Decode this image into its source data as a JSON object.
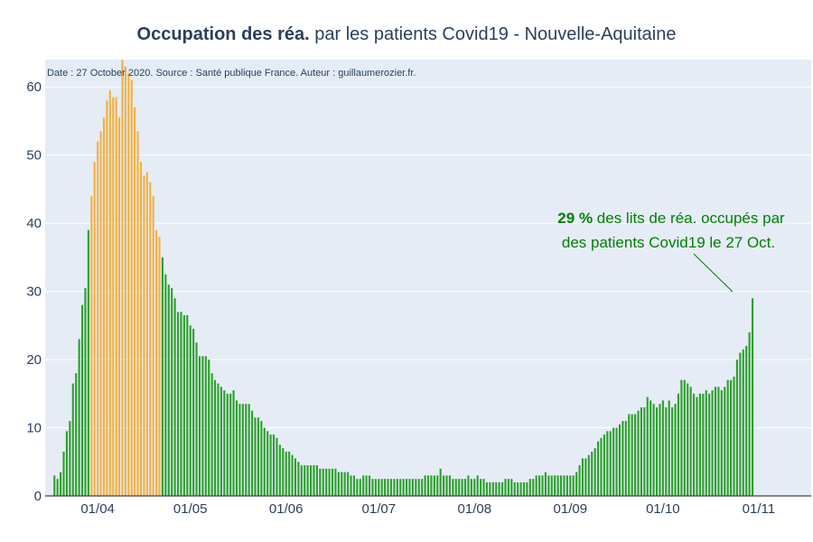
{
  "title": {
    "bold": "Occupation des réa.",
    "rest": " par les patients Covid19 - Nouvelle-Aquitaine"
  },
  "note": "Date : 27 October 2020. Source : Santé publique France. Auteur : guillaumerozier.fr.",
  "annotation": {
    "value": "29",
    "value_suffix": "  %",
    "line1_rest": " des lits de réa. occupés par",
    "line2": "des patients Covid19 le 27 Oct."
  },
  "colors": {
    "plot_bg": "#e5ecf6",
    "grid": "#ffffff",
    "bar_green": "#2ca02c",
    "bar_orange": "#f5b041",
    "annotation": "#008000",
    "text": "#2a3f5f"
  },
  "chart_data": {
    "type": "bar",
    "x_start": "2020-03-18",
    "x_end": "2020-10-27",
    "xlim": [
      "2020-03-15",
      "2020-11-18"
    ],
    "ylim": [
      0,
      64
    ],
    "y_ticks": [
      0,
      10,
      20,
      30,
      40,
      50,
      60
    ],
    "x_ticks": [
      {
        "date": "2020-04-01",
        "label": "01/04"
      },
      {
        "date": "2020-05-01",
        "label": "01/05"
      },
      {
        "date": "2020-06-01",
        "label": "01/06"
      },
      {
        "date": "2020-07-01",
        "label": "01/07"
      },
      {
        "date": "2020-08-01",
        "label": "01/08"
      },
      {
        "date": "2020-09-01",
        "label": "01/09"
      },
      {
        "date": "2020-10-01",
        "label": "01/10"
      },
      {
        "date": "2020-11-01",
        "label": "01/11"
      }
    ],
    "highlight_range": [
      "2020-03-30",
      "2020-04-21"
    ],
    "grid": true,
    "values": [
      3,
      2.5,
      3.5,
      6.5,
      9.5,
      11,
      16.5,
      18,
      23,
      28,
      30.5,
      39,
      44,
      49,
      52,
      53.5,
      55.5,
      58,
      59.5,
      58.5,
      58.5,
      55.5,
      65,
      63,
      62,
      61,
      57,
      53.5,
      49,
      47,
      47.5,
      46,
      44,
      39,
      38,
      35,
      32.5,
      31,
      30.5,
      29,
      27,
      27,
      26.5,
      26.5,
      25,
      24.5,
      22.5,
      20.5,
      20.5,
      20.5,
      20,
      18,
      17,
      16.5,
      16,
      15.5,
      15,
      15,
      15.5,
      14,
      13.5,
      13.5,
      13.5,
      13.5,
      12.5,
      11.5,
      11.5,
      11,
      10,
      9.5,
      9,
      9,
      8.5,
      7.5,
      7,
      6.5,
      6.5,
      6,
      5.5,
      5,
      4.5,
      4.5,
      4.5,
      4.5,
      4.5,
      4.5,
      4,
      4,
      4,
      4,
      4,
      4,
      3.5,
      3.5,
      3.5,
      3.5,
      3,
      3,
      2.5,
      2.5,
      3,
      3,
      3,
      2.5,
      2.5,
      2.5,
      2.5,
      2.5,
      2.5,
      2.5,
      2.5,
      2.5,
      2.5,
      2.5,
      2.5,
      2.5,
      2.5,
      2.5,
      2.5,
      2.5,
      3,
      3,
      3,
      3,
      3,
      4,
      3,
      3,
      3,
      2.5,
      2.5,
      2.5,
      2.5,
      2.5,
      3,
      2.5,
      2.5,
      3,
      2.5,
      2.5,
      2,
      2,
      2,
      2,
      2,
      2,
      2.5,
      2.5,
      2.5,
      2,
      2,
      2,
      2,
      2,
      2.5,
      2.5,
      3,
      3,
      3,
      3.5,
      3,
      3,
      3,
      3,
      3,
      3,
      3,
      3,
      3,
      3.5,
      4.5,
      5.5,
      5.5,
      6,
      6.5,
      7,
      8,
      8.5,
      9,
      9.5,
      9.5,
      10,
      10,
      10.5,
      11,
      11,
      12,
      12,
      12,
      12.5,
      13,
      13,
      14.5,
      14,
      13.5,
      13,
      13.5,
      14,
      13,
      14,
      13,
      13.5,
      15,
      17,
      17,
      16.5,
      16,
      15,
      14.5,
      15,
      15,
      15.5,
      15,
      15.5,
      16,
      16,
      15.5,
      16,
      17,
      17,
      17.5,
      20,
      21,
      21.5,
      22,
      24,
      29
    ]
  }
}
